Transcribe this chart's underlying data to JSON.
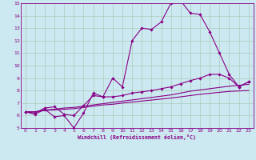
{
  "xlabel": "Windchill (Refroidissement éolien,°C)",
  "bg_color": "#cce8f0",
  "grid_color": "#aaccbb",
  "line_color": "#880088",
  "xlim": [
    -0.5,
    23.5
  ],
  "ylim": [
    5,
    15
  ],
  "xticks": [
    0,
    1,
    2,
    3,
    4,
    5,
    6,
    7,
    8,
    9,
    10,
    11,
    12,
    13,
    14,
    15,
    16,
    17,
    18,
    19,
    20,
    21,
    22,
    23
  ],
  "yticks": [
    5,
    6,
    7,
    8,
    9,
    10,
    11,
    12,
    13,
    14,
    15
  ],
  "line1_x": [
    0,
    1,
    2,
    3,
    4,
    5,
    6,
    7,
    8,
    9,
    10,
    11,
    12,
    13,
    14,
    15,
    16,
    17,
    18,
    19,
    20,
    21,
    22,
    23
  ],
  "line1_y": [
    6.3,
    6.1,
    6.5,
    5.9,
    6.0,
    5.0,
    6.2,
    7.8,
    7.5,
    9.0,
    8.3,
    12.0,
    13.0,
    12.9,
    13.5,
    15.0,
    15.2,
    14.2,
    14.1,
    12.7,
    11.0,
    9.3,
    8.3,
    8.7
  ],
  "line2_x": [
    0,
    1,
    2,
    3,
    4,
    5,
    6,
    7,
    8,
    9,
    10,
    11,
    12,
    13,
    14,
    15,
    16,
    17,
    18,
    19,
    20,
    21,
    22,
    23
  ],
  "line2_y": [
    6.3,
    6.2,
    6.6,
    6.7,
    6.1,
    6.0,
    6.8,
    7.6,
    7.5,
    7.5,
    7.6,
    7.8,
    7.9,
    8.0,
    8.15,
    8.3,
    8.55,
    8.8,
    9.0,
    9.3,
    9.3,
    9.0,
    8.3,
    8.7
  ],
  "line3_x": [
    0,
    1,
    2,
    3,
    4,
    5,
    6,
    7,
    8,
    9,
    10,
    11,
    12,
    13,
    14,
    15,
    16,
    17,
    18,
    19,
    20,
    21,
    22,
    23
  ],
  "line3_y": [
    6.3,
    6.3,
    6.45,
    6.5,
    6.6,
    6.65,
    6.75,
    6.85,
    6.95,
    7.05,
    7.15,
    7.25,
    7.35,
    7.45,
    7.55,
    7.65,
    7.8,
    7.95,
    8.05,
    8.15,
    8.25,
    8.35,
    8.42,
    8.5
  ],
  "line4_x": [
    0,
    1,
    2,
    3,
    4,
    5,
    6,
    7,
    8,
    9,
    10,
    11,
    12,
    13,
    14,
    15,
    16,
    17,
    18,
    19,
    20,
    21,
    22,
    23
  ],
  "line4_y": [
    6.3,
    6.3,
    6.4,
    6.45,
    6.5,
    6.55,
    6.65,
    6.75,
    6.85,
    6.9,
    7.0,
    7.08,
    7.16,
    7.24,
    7.32,
    7.4,
    7.5,
    7.6,
    7.7,
    7.78,
    7.86,
    7.93,
    7.97,
    8.0
  ]
}
